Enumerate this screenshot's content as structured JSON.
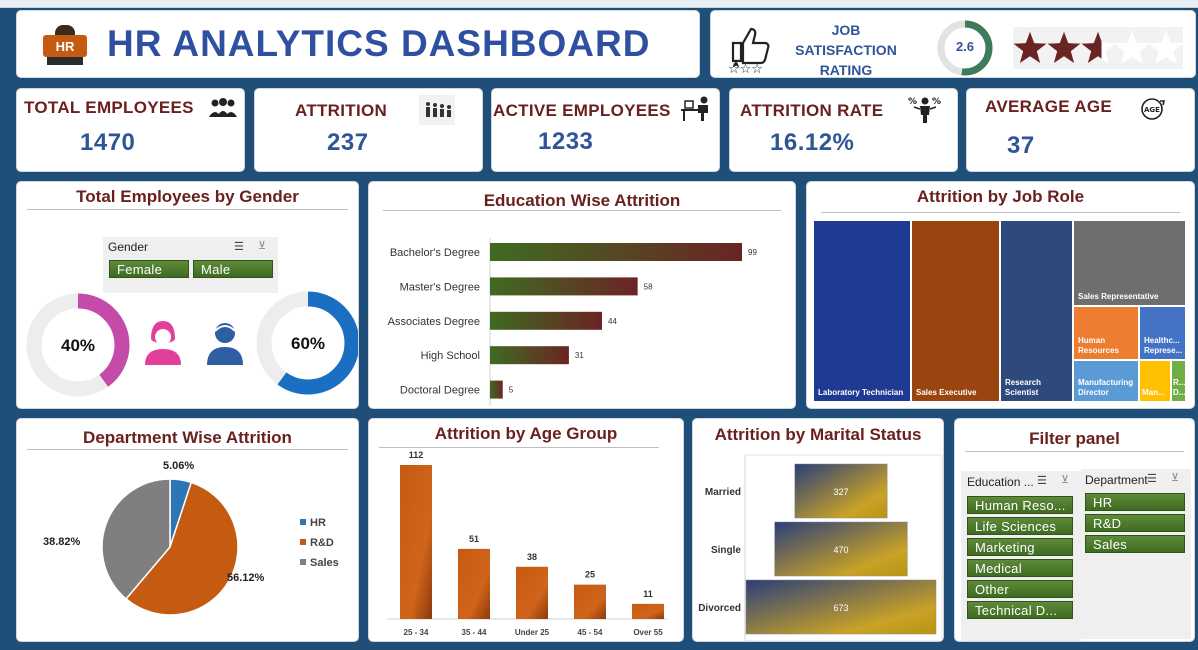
{
  "header": {
    "logo_text": "HR",
    "title": "HR ANALYTICS DASHBOARD"
  },
  "job_satisfaction": {
    "label_line1": "JOB",
    "label_line2": "SATISFACTION",
    "label_line3": "RATING",
    "value": "2.6",
    "value_numeric": 2.6,
    "max_stars": 5
  },
  "kpis": [
    {
      "label": "TOTAL EMPLOYEES",
      "value": "1470",
      "icon": "people-group-icon"
    },
    {
      "label": "ATTRITION",
      "value": "237",
      "icon": "people-leaving-icon"
    },
    {
      "label": "ACTIVE EMPLOYEES",
      "value": "1233",
      "icon": "desk-worker-icon"
    },
    {
      "label": "ATTRITION RATE",
      "value": "16.12%",
      "icon": "percent-person-icon"
    },
    {
      "label": "AVERAGE AGE",
      "value": "37",
      "icon": "age-icon"
    }
  ],
  "gender_panel": {
    "title": "Total Employees by Gender",
    "slicer_header": "Gender",
    "slicer_items": [
      "Female",
      "Male"
    ],
    "female_pct": "40%",
    "male_pct": "60%",
    "female_fraction": 0.4,
    "male_fraction": 0.6
  },
  "education_panel": {
    "title": "Education Wise Attrition"
  },
  "jobrole_panel": {
    "title": "Attrition by Job Role",
    "tiles": [
      {
        "label": "Laboratory Technician",
        "color": "#1f3a93"
      },
      {
        "label": "Sales Executive",
        "color": "#c55a11"
      },
      {
        "label": "Research Scientist",
        "color": "#2e4a7d"
      },
      {
        "label": "Sales Representative",
        "color": "#6e6e6e"
      },
      {
        "label": "Human Resources",
        "color": "#ed7d31"
      },
      {
        "label": "Healthc... Represe...",
        "color": "#4472c4"
      },
      {
        "label": "Manufacturing Director",
        "color": "#5b9bd5"
      },
      {
        "label": "Man...",
        "color": "#ffc000"
      },
      {
        "label": "R... D...",
        "color": "#70ad47"
      }
    ]
  },
  "department_panel": {
    "title": "Department Wise Attrition"
  },
  "age_panel": {
    "title": "Attrition by Age Group"
  },
  "marital_panel": {
    "title": "Attrition by Marital Status"
  },
  "filter_panel": {
    "title": "Filter panel",
    "education_header": "Education ...",
    "education_items": [
      "Human Reso...",
      "Life Sciences",
      "Marketing",
      "Medical",
      "Other",
      "Technical D..."
    ],
    "department_header": "Department",
    "department_items": [
      "HR",
      "R&D",
      "Sales"
    ]
  },
  "colors": {
    "navy": "#1f4e79",
    "title_red": "#6b2020",
    "value_blue": "#2f5597",
    "slicer_green": "#4a7a2c",
    "bar_orange": "#c55a11"
  },
  "chart_data": [
    {
      "type": "bar",
      "orientation": "horizontal",
      "categories": [
        "Bachelor's Degree",
        "Master's Degree",
        "Associates Degree",
        "High School",
        "Doctoral Degree"
      ],
      "values": [
        99,
        58,
        44,
        31,
        5
      ]
    },
    {
      "type": "pie",
      "categories": [
        "HR",
        "R&D",
        "Sales"
      ],
      "values": [
        5.06,
        56.12,
        38.82
      ],
      "labels": [
        "5.06%",
        "56.12%",
        "38.82%"
      ],
      "colors": [
        "#2e75b6",
        "#c55a11",
        "#7f7f7f"
      ],
      "legend": "right"
    },
    {
      "type": "bar",
      "categories": [
        "25 - 34",
        "35 - 44",
        "Under 25",
        "45 - 54",
        "Over 55"
      ],
      "values": [
        112,
        51,
        38,
        25,
        11
      ]
    },
    {
      "type": "bar",
      "orientation": "horizontal-funnel",
      "categories": [
        "Married",
        "Single",
        "Divorced"
      ],
      "values": [
        327,
        470,
        673
      ]
    }
  ]
}
